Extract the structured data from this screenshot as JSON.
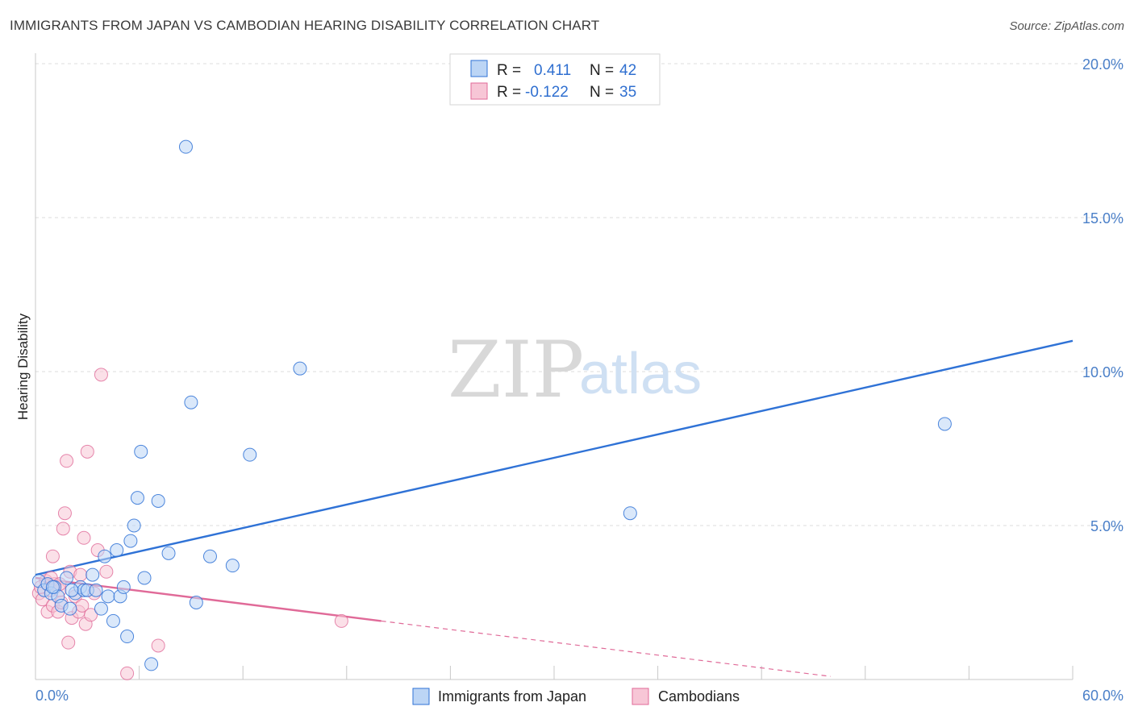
{
  "header": {
    "title": "IMMIGRANTS FROM JAPAN VS CAMBODIAN HEARING DISABILITY CORRELATION CHART",
    "source": "Source: ZipAtlas.com"
  },
  "watermark": {
    "zip": "ZIP",
    "atlas": "atlas"
  },
  "colors": {
    "japan": "#2f72d6",
    "japan_fill": "#bcd5f5",
    "cambodian": "#e06a98",
    "cambodian_fill": "#f7c6d6",
    "tick": "#4a7fc8",
    "grid": "#dddddd"
  },
  "stats_legend": {
    "japan": {
      "r_label": "R =",
      "r_value": "0.411",
      "n_label": "N =",
      "n_value": "42"
    },
    "cambodian": {
      "r_label": "R =",
      "r_value": "-0.122",
      "n_label": "N =",
      "n_value": "35"
    }
  },
  "chart_data": {
    "type": "scatter",
    "title": "IMMIGRANTS FROM JAPAN VS CAMBODIAN HEARING DISABILITY CORRELATION CHART",
    "xlabel": "",
    "ylabel": "Hearing Disability",
    "xlim": [
      0,
      60
    ],
    "ylim": [
      0,
      20
    ],
    "x_tick_labels": [
      "0.0%",
      "60.0%"
    ],
    "y_ticks": [
      5,
      10,
      15,
      20
    ],
    "y_tick_labels": [
      "5.0%",
      "10.0%",
      "15.0%",
      "20.0%"
    ],
    "grid": true,
    "legend": [
      "Immigrants from Japan",
      "Cambodians"
    ],
    "series": [
      {
        "name": "Immigrants from Japan",
        "points": [
          [
            0.2,
            3.2
          ],
          [
            0.5,
            2.9
          ],
          [
            0.7,
            3.1
          ],
          [
            0.9,
            2.8
          ],
          [
            1.1,
            3.0
          ],
          [
            1.3,
            2.7
          ],
          [
            1.5,
            2.4
          ],
          [
            1.8,
            3.3
          ],
          [
            2.0,
            2.3
          ],
          [
            2.3,
            2.8
          ],
          [
            2.6,
            3.0
          ],
          [
            2.8,
            2.9
          ],
          [
            3.0,
            2.9
          ],
          [
            3.3,
            3.4
          ],
          [
            3.5,
            2.9
          ],
          [
            3.8,
            2.3
          ],
          [
            4.0,
            4.0
          ],
          [
            4.2,
            2.7
          ],
          [
            4.5,
            1.9
          ],
          [
            4.7,
            4.2
          ],
          [
            4.9,
            2.7
          ],
          [
            5.1,
            3.0
          ],
          [
            5.3,
            1.4
          ],
          [
            5.5,
            4.5
          ],
          [
            5.7,
            5.0
          ],
          [
            5.9,
            5.9
          ],
          [
            6.1,
            7.4
          ],
          [
            6.3,
            3.3
          ],
          [
            6.7,
            0.5
          ],
          [
            7.1,
            5.8
          ],
          [
            7.7,
            4.1
          ],
          [
            8.7,
            17.3
          ],
          [
            9.0,
            9.0
          ],
          [
            9.3,
            2.5
          ],
          [
            10.1,
            4.0
          ],
          [
            11.4,
            3.7
          ],
          [
            12.4,
            7.3
          ],
          [
            15.3,
            10.1
          ],
          [
            34.4,
            5.4
          ],
          [
            52.6,
            8.3
          ],
          [
            1.0,
            3.0
          ],
          [
            2.1,
            2.9
          ]
        ],
        "trend": {
          "x": [
            0,
            60
          ],
          "y": [
            3.4,
            11.0
          ]
        }
      },
      {
        "name": "Cambodians",
        "points": [
          [
            0.2,
            2.8
          ],
          [
            0.4,
            2.6
          ],
          [
            0.6,
            3.2
          ],
          [
            0.7,
            2.2
          ],
          [
            0.9,
            2.9
          ],
          [
            1.0,
            2.4
          ],
          [
            1.1,
            3.1
          ],
          [
            1.3,
            2.2
          ],
          [
            1.4,
            2.9
          ],
          [
            1.5,
            2.5
          ],
          [
            1.6,
            4.9
          ],
          [
            1.7,
            5.4
          ],
          [
            1.8,
            7.1
          ],
          [
            1.9,
            1.2
          ],
          [
            2.0,
            3.5
          ],
          [
            2.1,
            2.0
          ],
          [
            2.3,
            2.7
          ],
          [
            2.5,
            2.2
          ],
          [
            2.6,
            3.4
          ],
          [
            2.7,
            2.4
          ],
          [
            2.8,
            4.6
          ],
          [
            2.9,
            1.8
          ],
          [
            3.0,
            7.4
          ],
          [
            3.2,
            2.1
          ],
          [
            3.4,
            2.8
          ],
          [
            3.6,
            4.2
          ],
          [
            3.8,
            9.9
          ],
          [
            4.1,
            3.5
          ],
          [
            5.3,
            0.2
          ],
          [
            7.1,
            1.1
          ],
          [
            17.7,
            1.9
          ],
          [
            0.9,
            3.3
          ],
          [
            1.4,
            3.1
          ],
          [
            0.3,
            3.0
          ],
          [
            1.0,
            4.0
          ]
        ],
        "trend": {
          "x": [
            0,
            20
          ],
          "y": [
            3.3,
            1.9
          ]
        },
        "trend_dashed": {
          "x": [
            20,
            46
          ],
          "y": [
            1.9,
            0.1
          ]
        }
      }
    ]
  }
}
